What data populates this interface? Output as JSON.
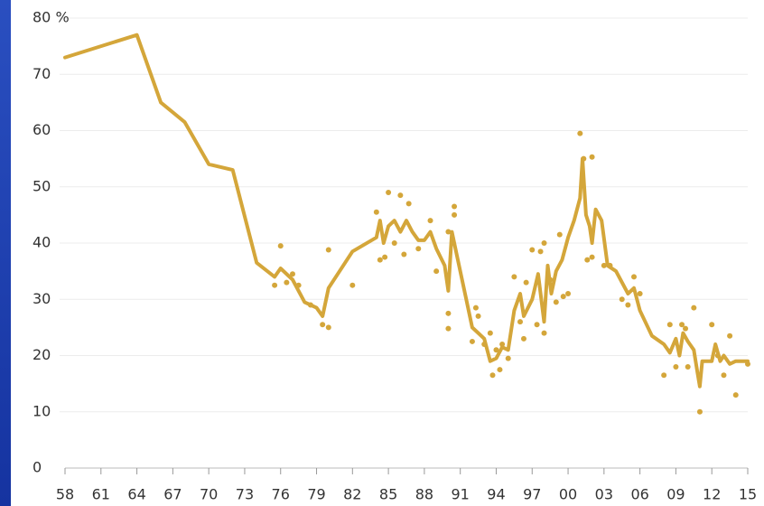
{
  "chart_data": {
    "type": "line",
    "xlim": [
      1958,
      2015
    ],
    "ylim": [
      0,
      80
    ],
    "xticks": [
      {
        "value": 1958,
        "label": "58"
      },
      {
        "value": 1961,
        "label": "61"
      },
      {
        "value": 1964,
        "label": "64"
      },
      {
        "value": 1967,
        "label": "67"
      },
      {
        "value": 1970,
        "label": "70"
      },
      {
        "value": 1973,
        "label": "73"
      },
      {
        "value": 1976,
        "label": "76"
      },
      {
        "value": 1979,
        "label": "79"
      },
      {
        "value": 1982,
        "label": "82"
      },
      {
        "value": 1985,
        "label": "85"
      },
      {
        "value": 1988,
        "label": "88"
      },
      {
        "value": 1991,
        "label": "91"
      },
      {
        "value": 1994,
        "label": "94"
      },
      {
        "value": 1997,
        "label": "97"
      },
      {
        "value": 2000,
        "label": "00"
      },
      {
        "value": 2003,
        "label": "03"
      },
      {
        "value": 2006,
        "label": "06"
      },
      {
        "value": 2009,
        "label": "09"
      },
      {
        "value": 2012,
        "label": "12"
      },
      {
        "value": 2015,
        "label": "15"
      }
    ],
    "yticks": [
      0,
      10,
      20,
      30,
      40,
      50,
      60,
      70,
      {
        "value": 80,
        "label": "80 %"
      }
    ],
    "grid": true,
    "color": "#d4a63a",
    "series": [
      {
        "x": [
          1958,
          1964,
          1966,
          1968,
          1970,
          1972,
          1974,
          1975.5,
          1976,
          1977,
          1978,
          1979,
          1979.5,
          1980,
          1982,
          1984,
          1984.3,
          1984.6,
          1985,
          1985.5,
          1986,
          1986.5,
          1987,
          1987.5,
          1988,
          1988.5,
          1989,
          1989.7,
          1990,
          1990.3,
          1990.8,
          1991.5,
          1992,
          1992.5,
          1993,
          1993.5,
          1994,
          1994.5,
          1995,
          1995.5,
          1996,
          1996.3,
          1997,
          1997.5,
          1998,
          1998.3,
          1998.6,
          1999,
          1999.5,
          2000,
          2000.5,
          2001,
          2001.2,
          2001.5,
          2001.8,
          2002,
          2002.3,
          2002.8,
          2003.3,
          2004,
          2005,
          2005.5,
          2006,
          2007,
          2008,
          2008.5,
          2009,
          2009.3,
          2009.6,
          2010,
          2010.5,
          2010.8,
          2011,
          2011.2,
          2012,
          2012.3,
          2012.7,
          2013,
          2013.5,
          2014,
          2015
        ],
        "values": [
          73,
          77,
          65,
          61.5,
          54,
          53,
          36.5,
          34,
          35.5,
          33.5,
          29.5,
          28.5,
          27,
          32,
          38.5,
          41,
          44,
          40,
          43,
          44,
          42,
          44,
          42,
          40.5,
          40.5,
          42,
          39,
          36,
          31.5,
          42,
          37,
          30,
          25,
          24,
          23,
          19,
          19.5,
          21.5,
          21,
          28,
          31,
          27,
          30,
          34.5,
          26,
          36,
          31,
          35,
          37,
          41,
          44,
          48,
          55,
          45,
          43,
          40,
          46,
          44,
          36,
          35,
          31,
          32,
          28,
          23.5,
          22,
          20.5,
          23,
          20,
          24,
          22.5,
          21,
          17,
          14.5,
          19,
          19,
          22,
          19,
          20,
          18.5,
          19,
          19
        ]
      },
      {
        "mode": "markers",
        "x": [
          1976,
          1975.5,
          1976.5,
          1977,
          1977.5,
          1978.5,
          1979.5,
          1980,
          1980,
          1982,
          1984,
          1984.3,
          1984.7,
          1985,
          1985.5,
          1986,
          1986.3,
          1986.7,
          1987.5,
          1988.5,
          1989,
          1990,
          1990,
          1990.5,
          1990.5,
          1990,
          1992,
          1992.3,
          1992.5,
          1993,
          1993.5,
          1993.7,
          1994,
          1994.3,
          1994.5,
          1995,
          1995.5,
          1996,
          1996.3,
          1996.5,
          1997,
          1997.4,
          1997.7,
          1998,
          1998,
          1998.5,
          1999,
          1999.3,
          1999.6,
          2000,
          2001,
          2001.3,
          2001.6,
          2002,
          2002,
          2003,
          2003.5,
          2004.5,
          2005,
          2005.5,
          2006,
          2008,
          2008.5,
          2009,
          2009.5,
          2009.8,
          2010,
          2010.5,
          2011,
          2012,
          2012.5,
          2013,
          2013.5,
          2014,
          2015
        ],
        "values": [
          39.5,
          32.5,
          33,
          34.5,
          32.5,
          29,
          25.5,
          25,
          38.8,
          32.5,
          45.5,
          37,
          37.5,
          49,
          40,
          48.5,
          38,
          47,
          39,
          44,
          35,
          27.5,
          24.8,
          46.5,
          45,
          42,
          22.5,
          28.5,
          27,
          22,
          24,
          16.5,
          21,
          17.5,
          22,
          19.5,
          34,
          26,
          23,
          33,
          38.8,
          25.5,
          38.5,
          24,
          40,
          33.5,
          29.5,
          41.5,
          30.5,
          31,
          59.5,
          55,
          37,
          37.5,
          55.3,
          36,
          36,
          30,
          29,
          34,
          31,
          16.5,
          25.5,
          18,
          25.5,
          24.8,
          18,
          28.5,
          10,
          25.5,
          20,
          16.5,
          23.5,
          13,
          18.5
        ]
      }
    ]
  }
}
